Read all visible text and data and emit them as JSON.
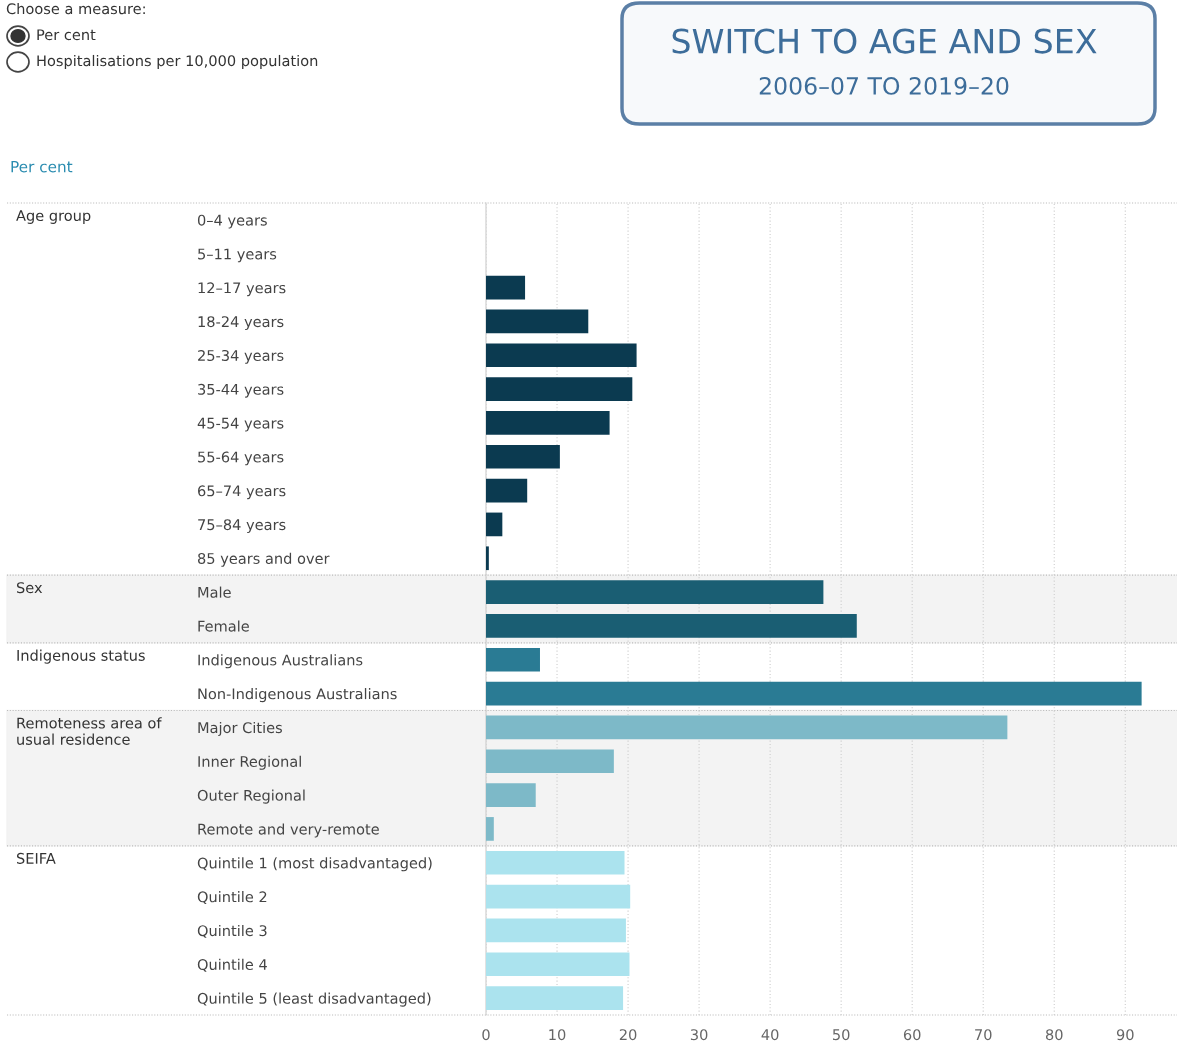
{
  "chart_data": {
    "type": "bar",
    "orientation": "horizontal",
    "title": "Per cent",
    "categories": [
      "0–4 years",
      "5–11 years",
      "12–17 years",
      "18-24 years",
      "25-34 years",
      "35-44 years",
      "45-54 years",
      "55-64 years",
      "65–74 years",
      "75–84 years",
      "85 years and over",
      "Male",
      "Female",
      "Indigenous Australians",
      "Non-Indigenous Australians",
      "Major Cities",
      "Inner Regional",
      "Outer Regional",
      "Remote and very-remote",
      "Quintile 1 (most disadvantaged)",
      "Quintile 2",
      "Quintile 3",
      "Quintile 4",
      "Quintile 5 (least disadvantaged)"
    ],
    "values": [
      0,
      0,
      5.5,
      14.4,
      21.2,
      20.6,
      17.4,
      10.4,
      5.8,
      2.3,
      0.4,
      47.5,
      52.2,
      7.6,
      92.3,
      73.4,
      18.0,
      7.0,
      1.1,
      19.5,
      20.3,
      19.7,
      20.2,
      19.3
    ],
    "colors": [
      "#0b3a50",
      "#0b3a50",
      "#0b3a50",
      "#0b3a50",
      "#0b3a50",
      "#0b3a50",
      "#0b3a50",
      "#0b3a50",
      "#0b3a50",
      "#0b3a50",
      "#0b3a50",
      "#1a5e73",
      "#1a5e73",
      "#2a7b94",
      "#2a7b94",
      "#7db9c8",
      "#7db9c8",
      "#7db9c8",
      "#7db9c8",
      "#abe3ee",
      "#abe3ee",
      "#abe3ee",
      "#abe3ee",
      "#abe3ee"
    ],
    "xlim": [
      0,
      97
    ],
    "xticks": [
      0,
      10,
      20,
      30,
      40,
      50,
      60,
      70,
      80,
      90
    ],
    "grid": "x",
    "bands": [
      {
        "axis": "y",
        "from": "Male",
        "to": "Female",
        "color": "#f3f3f3"
      },
      {
        "axis": "y",
        "from": "Major Cities",
        "to": "Remote and very-remote",
        "color": "#f3f3f3"
      }
    ],
    "annotations": [
      "Choose a measure:",
      "Per cent",
      "Hospitalisations per 10,000 population",
      "SWITCH TO AGE AND SEX",
      "2006–07 TO 2019–20",
      "Age group",
      "Sex",
      "Indigenous status",
      "Remoteness area of\nusual residence",
      "SEIFA"
    ]
  }
}
